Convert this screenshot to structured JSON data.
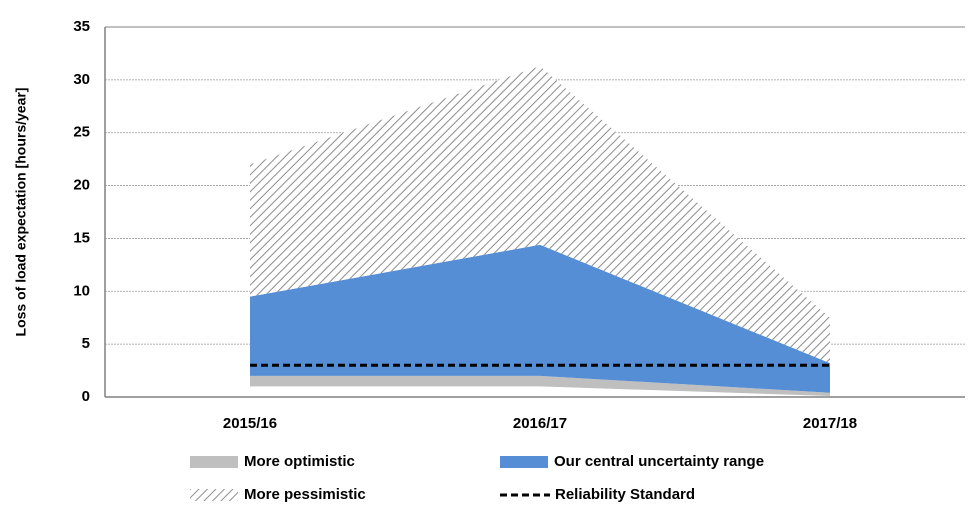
{
  "chart_data": {
    "type": "stacked_area",
    "y_label": "Loss of load expectation [hours/year]",
    "categories": [
      "2015/16",
      "2016/17",
      "2017/18"
    ],
    "series": [
      {
        "color": "none",
        "values": [
          1.0,
          1.0,
          0.1
        ]
      },
      {
        "name": "More optimistic",
        "color": "#bfbfbf",
        "values": [
          1.0,
          1.0,
          0.3
        ]
      },
      {
        "name": "Our central uncertainty range",
        "color": "#558ed5",
        "values": [
          7.5,
          12.4,
          2.8
        ]
      },
      {
        "name": "More pessimistic",
        "color": "#a6a6a6",
        "pattern": "hatch",
        "values": [
          12.5,
          16.9,
          4.3
        ]
      }
    ],
    "reference_line": {
      "name": "Reliability Standard",
      "color": "#000000",
      "style": "dashed",
      "values": [
        3,
        3,
        3
      ]
    },
    "ylim": [
      0,
      35
    ],
    "yticks": [
      0,
      5,
      10,
      15,
      20,
      25,
      30,
      35
    ],
    "grid": true
  }
}
